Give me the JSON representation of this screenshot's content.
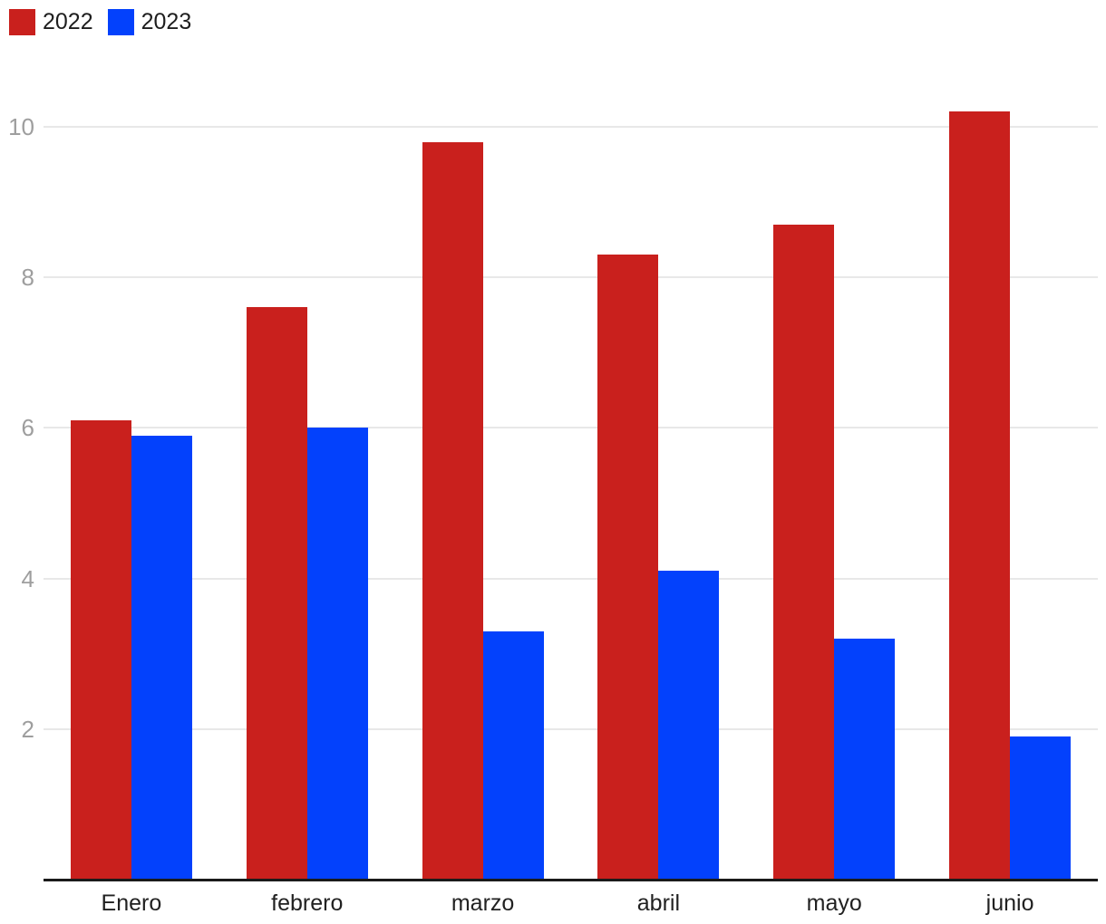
{
  "chart_data": {
    "type": "bar",
    "title": "",
    "xlabel": "",
    "ylabel": "",
    "categories": [
      "Enero",
      "febrero",
      "marzo",
      "abril",
      "mayo",
      "junio"
    ],
    "series": [
      {
        "name": "2022",
        "color": "#c9201d",
        "values": [
          6.1,
          7.6,
          9.8,
          8.3,
          8.7,
          10.2
        ]
      },
      {
        "name": "2023",
        "color": "#0341fc",
        "values": [
          5.9,
          6.0,
          3.3,
          4.1,
          3.2,
          1.9
        ]
      }
    ],
    "ylim": [
      0,
      10.5
    ],
    "yticks": [
      2,
      4,
      6,
      8,
      10
    ],
    "grid": true,
    "legend_position": "top-left",
    "colors": {
      "axis_line": "#1a1a1a",
      "gridline": "#e8e8e8",
      "ytick_text": "#9e9e9e",
      "xtick_text": "#212121",
      "legend_text": "#1e1e1e",
      "background": "#ffffff"
    }
  }
}
